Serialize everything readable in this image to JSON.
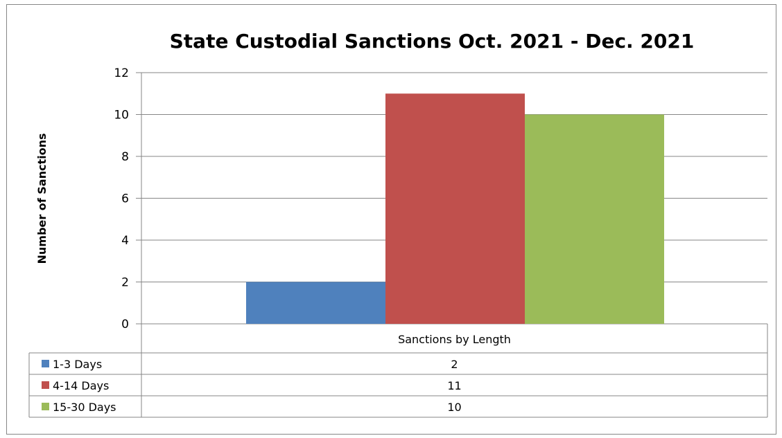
{
  "chart_data": {
    "type": "bar",
    "title": "State Custodial Sanctions Oct. 2021 - Dec. 2021",
    "xlabel": "",
    "ylabel": "Number of Sanctions",
    "categories": [
      "Sanctions by Length"
    ],
    "ylim": [
      0,
      12
    ],
    "yticks": [
      "0",
      "2",
      "4",
      "6",
      "8",
      "10",
      "12"
    ],
    "grid": true,
    "legend": "data-table-below",
    "series": [
      {
        "name": "1-3 Days",
        "values": [
          2
        ],
        "color": "#4F81BD"
      },
      {
        "name": "4-14 Days",
        "values": [
          11
        ],
        "color": "#C0504D"
      },
      {
        "name": "15-30 Days",
        "values": [
          10
        ],
        "color": "#9BBB59"
      }
    ]
  }
}
